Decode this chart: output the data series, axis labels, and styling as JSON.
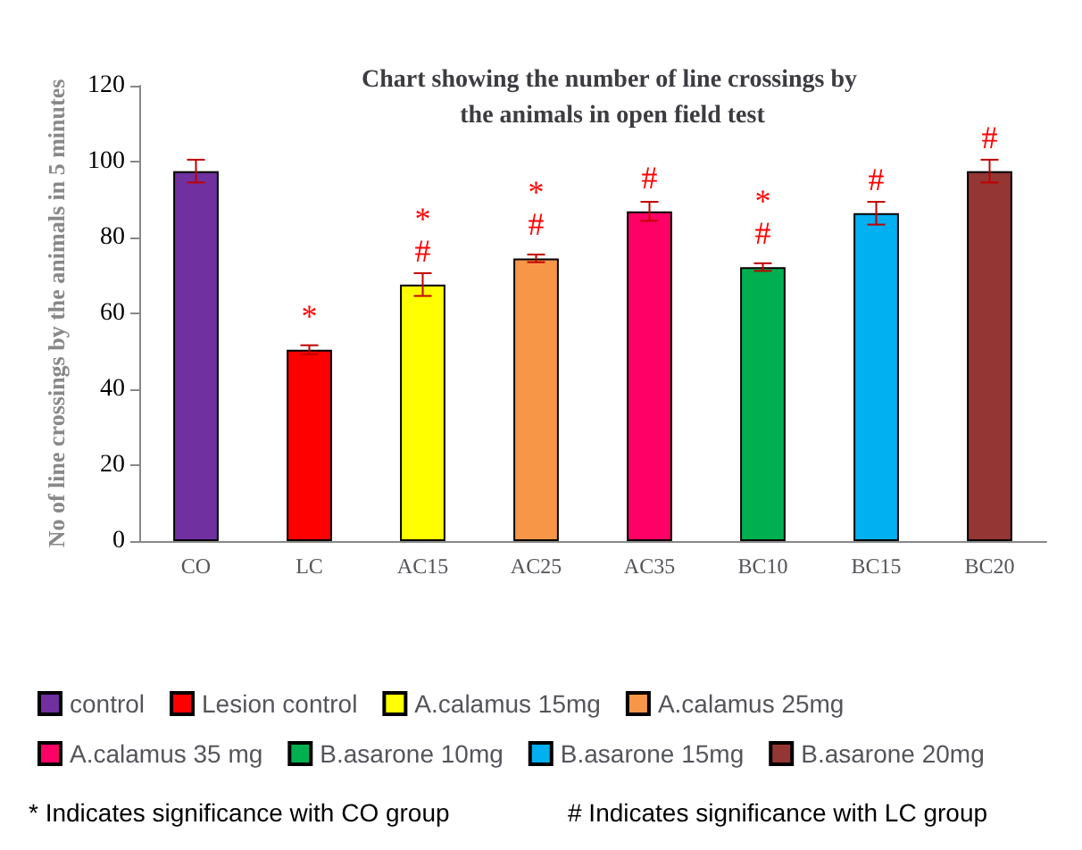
{
  "chart_data": {
    "type": "bar",
    "title": "Chart showing the number of line crossings by the animals in open field test",
    "ylabel": "No of line crossings by the animals in 5 minutes",
    "categories": [
      "CO",
      "LC",
      "AC15",
      "AC25",
      "AC35",
      "BC10",
      "BC15",
      "BC20"
    ],
    "series": [
      {
        "name": "control",
        "color": "#7030a0",
        "values": [
          97.5,
          null,
          null,
          null,
          null,
          null,
          null,
          null
        ],
        "errors": [
          3,
          null,
          null,
          null,
          null,
          null,
          null,
          null
        ]
      },
      {
        "name": "Lesion control",
        "color": "#ff0000",
        "values": [
          null,
          50.4,
          null,
          null,
          null,
          null,
          null,
          null
        ],
        "errors": [
          null,
          1.2,
          null,
          null,
          null,
          null,
          null,
          null
        ]
      },
      {
        "name": "A.calamus 15mg",
        "color": "#ffff00",
        "values": [
          null,
          null,
          67.6,
          null,
          null,
          null,
          null,
          null
        ],
        "errors": [
          null,
          null,
          3,
          null,
          null,
          null,
          null,
          null
        ]
      },
      {
        "name": "A.calamus 25mg",
        "color": "#f79646",
        "values": [
          null,
          null,
          null,
          74.5,
          null,
          null,
          null,
          null
        ],
        "errors": [
          null,
          null,
          null,
          1,
          null,
          null,
          null,
          null
        ]
      },
      {
        "name": "A.calamus 35 mg",
        "color": "#ff0066",
        "values": [
          null,
          null,
          null,
          null,
          86.9,
          null,
          null,
          null
        ],
        "errors": [
          null,
          null,
          null,
          null,
          2.5,
          null,
          null,
          null
        ]
      },
      {
        "name": "B.asarone 10mg",
        "color": "#00b050",
        "values": [
          null,
          null,
          null,
          null,
          null,
          72.2,
          null,
          null
        ],
        "errors": [
          null,
          null,
          null,
          null,
          null,
          1,
          null,
          null
        ]
      },
      {
        "name": "B.asarone 15mg",
        "color": "#00b0f0",
        "values": [
          null,
          null,
          null,
          null,
          null,
          null,
          86.4,
          null
        ],
        "errors": [
          null,
          null,
          null,
          null,
          null,
          null,
          3,
          null
        ]
      },
      {
        "name": "B.asarone 20mg",
        "color": "#943634",
        "values": [
          null,
          null,
          null,
          null,
          null,
          null,
          null,
          97.5
        ],
        "errors": [
          null,
          null,
          null,
          null,
          null,
          null,
          null,
          3
        ]
      }
    ],
    "stacked": true,
    "ylim": [
      0,
      120
    ],
    "yticks": [
      0,
      20,
      40,
      60,
      80,
      100,
      120
    ],
    "grid": false,
    "legend": "bottom",
    "value_labels": [
      null,
      "*",
      "*\n#",
      "*\n#",
      "#",
      "*\n#",
      "#",
      "#"
    ],
    "annotations": [
      "* Indicates significance with CO group",
      "# Indicates significance with LC group"
    ]
  }
}
